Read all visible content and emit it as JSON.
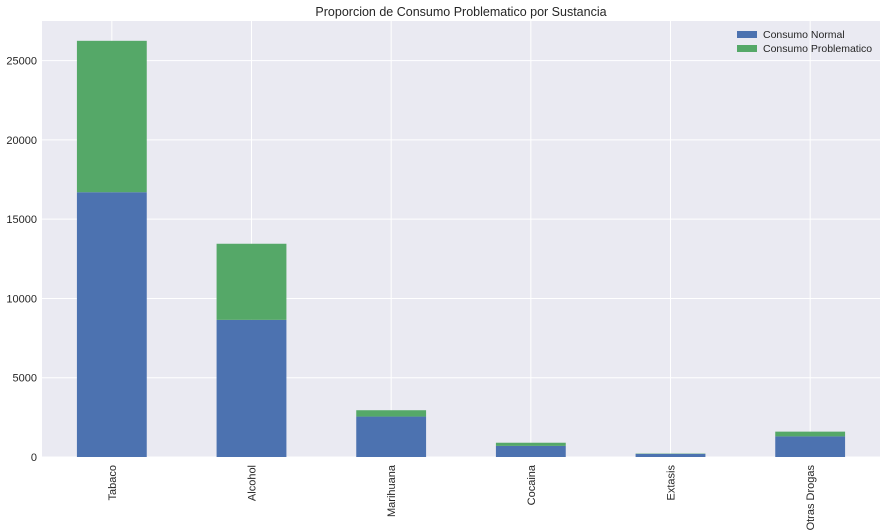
{
  "chart_data": {
    "type": "bar",
    "stacked": true,
    "title": "Proporcion de Consumo Problematico por Sustancia",
    "xlabel": "",
    "ylabel": "",
    "categories": [
      "Tabaco",
      "Alcohol",
      "Marihuana",
      "Cocaina",
      "Extasis",
      "Otras Drogas"
    ],
    "series": [
      {
        "name": "Consumo Normal",
        "values": [
          16700,
          8650,
          2550,
          700,
          200,
          1300
        ],
        "color": "#4c72b0"
      },
      {
        "name": "Consumo Problematico",
        "values": [
          9550,
          4800,
          400,
          200,
          20,
          300
        ],
        "color": "#55a868"
      }
    ],
    "ylim": [
      0,
      27500
    ],
    "yticks": [
      0,
      5000,
      10000,
      15000,
      20000,
      25000
    ],
    "grid": true,
    "legend_position": "top-right",
    "background": "#eaeaf2",
    "grid_color": "#ffffff"
  }
}
